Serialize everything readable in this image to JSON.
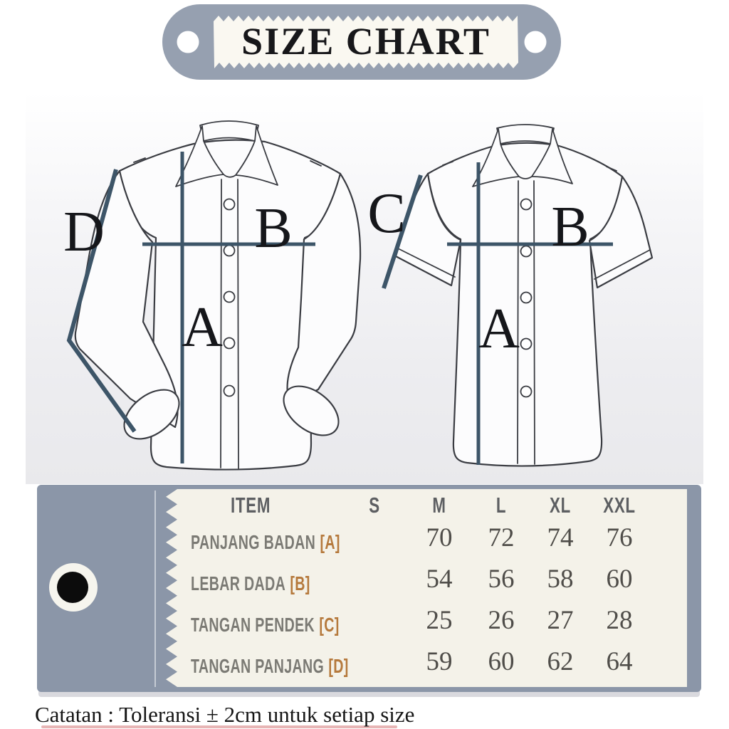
{
  "title": "SIZE CHART",
  "diagram": {
    "long_sleeve": {
      "label_a": "A",
      "label_b": "B",
      "label_d": "D"
    },
    "short_sleeve": {
      "label_a": "A",
      "label_b": "B",
      "label_c": "C"
    }
  },
  "table": {
    "columns": [
      "ITEM",
      "S",
      "M",
      "L",
      "XL",
      "XXL"
    ],
    "rows": [
      {
        "label": "PANJANG BADAN",
        "code": "[A]",
        "values": [
          "",
          "70",
          "72",
          "74",
          "76"
        ]
      },
      {
        "label": "LEBAR DADA",
        "code": "[B]",
        "values": [
          "",
          "54",
          "56",
          "58",
          "60"
        ]
      },
      {
        "label": "TANGAN PENDEK",
        "code": "[C]",
        "values": [
          "",
          "25",
          "26",
          "27",
          "28"
        ]
      },
      {
        "label": "TANGAN PANJANG",
        "code": "[D]",
        "values": [
          "",
          "59",
          "60",
          "62",
          "64"
        ]
      }
    ]
  },
  "note": "Catatan : Toleransi  ± 2cm untuk setiap size",
  "colors": {
    "slate_panel": "#8B96A8",
    "cream_panel": "#F4F2E9",
    "code_orange": "#B5793C",
    "measure_line": "#3D5568",
    "label_gray": "#7B7A74",
    "number_gray": "#4F4D49",
    "note_underline_red": "#C95A5A"
  }
}
